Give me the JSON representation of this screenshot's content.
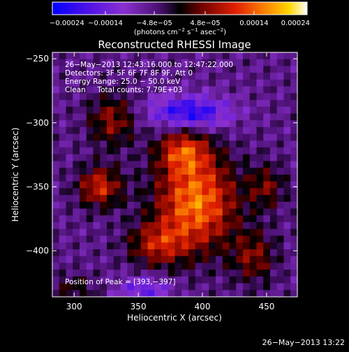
{
  "chart_data": {
    "type": "heatmap",
    "title": "Reconstructed RHESSI Image",
    "xlabel": "Heliocentric X (arcsec)",
    "ylabel": "Heliocentric Y (arcsec)",
    "xlim": [
      283,
      474
    ],
    "ylim": [
      -436,
      -245
    ],
    "x_ticks": [
      300,
      350,
      400,
      450
    ],
    "x_tick_labels": [
      "300",
      "350",
      "400",
      "450"
    ],
    "y_ticks": [
      -250,
      -300,
      -350,
      -400
    ],
    "y_tick_labels": [
      "−250",
      "−300",
      "−350",
      "−400"
    ],
    "colorbar": {
      "min": -0.00024,
      "max": 0.00024,
      "ticks": [
        -0.00024,
        -0.00014,
        -4.8e-05,
        4.8e-05,
        0.00014,
        0.00024
      ],
      "tick_labels": [
        "−0.00024",
        "−0.00014",
        "−4.8e−05",
        "4.8e−05",
        "0.00014",
        "0.00024"
      ],
      "units_prefix": "(photons cm",
      "units_exp1": "−2",
      "units_mid": " s",
      "units_exp2": "−1",
      "units_mid2": " asec",
      "units_exp3": "−2",
      "units_suffix": ")"
    },
    "annotations": [
      "26−May−2013 12:43:16.000 to 12:47:22.000",
      "Detectors: 3F 5F 6F 7F 8F 9F, Att 0",
      "Energy Range: 25.0 − 50.0 keV",
      "Clean     Total counts: 7.79E+03"
    ],
    "peak_label": "Position of Peak = [393,−397]",
    "peak": [
      393,
      -397
    ],
    "sources": [
      {
        "x": 395,
        "y": -362,
        "amp": 0.00021,
        "sx": 22,
        "sy": 26
      },
      {
        "x": 385,
        "y": -322,
        "amp": 0.00014,
        "sx": 14,
        "sy": 12
      },
      {
        "x": 320,
        "y": -350,
        "amp": 0.00015,
        "sx": 12,
        "sy": 11
      },
      {
        "x": 330,
        "y": -298,
        "amp": 0.00011,
        "sx": 13,
        "sy": 14
      },
      {
        "x": 365,
        "y": -395,
        "amp": 0.00012,
        "sx": 16,
        "sy": 12
      },
      {
        "x": 440,
        "y": -405,
        "amp": 0.0001,
        "sx": 12,
        "sy": 14
      },
      {
        "x": 450,
        "y": -350,
        "amp": 9e-05,
        "sx": 10,
        "sy": 12
      },
      {
        "x": 300,
        "y": -430,
        "amp": 6e-05,
        "sx": 12,
        "sy": 8
      },
      {
        "x": 390,
        "y": -292,
        "amp": -0.00016,
        "sx": 22,
        "sy": 9
      },
      {
        "x": 355,
        "y": -430,
        "amp": -0.0001,
        "sx": 14,
        "sy": 7
      }
    ]
  },
  "footer": {
    "timestamp": "26−May−2013 13:22"
  }
}
